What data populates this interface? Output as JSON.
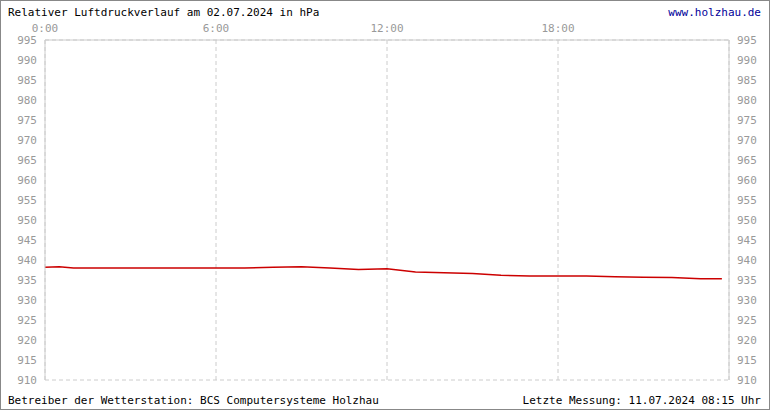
{
  "chart_data": {
    "type": "line",
    "title": "Relativer Luftdruckverlauf am 02.07.2024 in hPa",
    "annotations": [
      "www.holzhau.de",
      "Betreiber der Wetterstation: BCS Computersysteme Holzhau",
      "Letzte Messung: 11.07.2024 08:15 Uhr"
    ],
    "x": [
      0,
      0.5,
      1,
      2,
      3,
      4,
      5,
      6,
      7,
      8,
      9,
      10,
      11,
      12,
      13,
      14,
      15,
      16,
      17,
      18,
      19,
      20,
      21,
      22,
      23,
      23.75
    ],
    "values": [
      938.2,
      938.3,
      938.0,
      938.0,
      938.0,
      938.0,
      938.0,
      938.0,
      938.0,
      938.2,
      938.3,
      938.0,
      937.6,
      937.8,
      937.0,
      936.8,
      936.6,
      936.2,
      936.0,
      936.0,
      936.0,
      935.8,
      935.7,
      935.6,
      935.3,
      935.3
    ],
    "color": "#cc0000",
    "xlim": [
      0,
      24
    ],
    "xticks": [
      {
        "value": 0,
        "label": "0:00"
      },
      {
        "value": 6,
        "label": "6:00"
      },
      {
        "value": 12,
        "label": "12:00"
      },
      {
        "value": 18,
        "label": "18:00"
      }
    ],
    "ylim": [
      910,
      995
    ],
    "yticks": [
      910,
      915,
      920,
      925,
      930,
      935,
      940,
      945,
      950,
      955,
      960,
      965,
      970,
      975,
      980,
      985,
      990,
      995
    ],
    "grid": true
  }
}
